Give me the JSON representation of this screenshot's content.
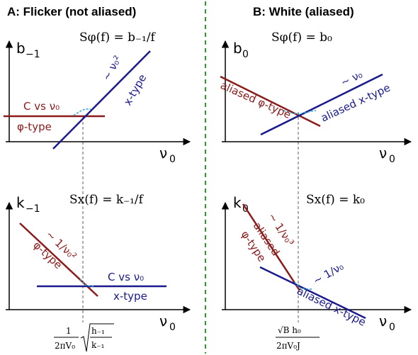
{
  "panels": {
    "left_title": "A:  Flicker (not aliased)",
    "right_title": "B:  White (aliased)"
  },
  "plots": {
    "tl": {
      "formula": "Sφ(f) = b₋₁/f",
      "ylabel": "b",
      "ylabel_sub": "−1",
      "xlabel": "ν",
      "xlabel_sub": "0",
      "red_line_label": "C vs ν₀",
      "red_type_label": "φ-type",
      "blue_line_label": "∼ ν₀²",
      "blue_type_label": "x-type"
    },
    "tr": {
      "formula": "Sφ(f) = b₀",
      "ylabel": "b",
      "ylabel_sub": "0",
      "xlabel": "ν",
      "xlabel_sub": "0",
      "red_line_label": "aliased φ-type",
      "blue_line_label": "∼ ν₀",
      "blue_type_label": "aliased x-type"
    },
    "bl": {
      "formula": "Sx(f) = k₋₁/f",
      "ylabel": "k",
      "ylabel_sub": "−1",
      "xlabel": "ν",
      "xlabel_sub": "0",
      "red_line_label": "∼ 1/ν₀²",
      "red_type_label": "φ-type",
      "blue_line_label": "C vs ν₀",
      "blue_type_label": "x-type"
    },
    "br": {
      "formula": "Sx(f) = k₀",
      "ylabel": "k",
      "ylabel_sub": "0",
      "xlabel": "ν",
      "xlabel_sub": "0",
      "red_line_label": "∼ 1/ν₀³",
      "red_type_label_1": "aliased",
      "red_type_label_2": "φ-type",
      "blue_line_label": "∼ 1/ν₀",
      "blue_type_label": "aliased x-type"
    }
  },
  "ticks": {
    "left_frac_num": "1",
    "left_frac_den": "2πV₀",
    "left_sqrt_num": "h₋₁",
    "left_sqrt_den": "k₋₁",
    "right_frac_num": "√B h₀",
    "right_frac_den": "2πV₀J"
  },
  "colors": {
    "red": "#8b1a1a",
    "blue": "#1a1a8c",
    "corner": "#29a3d6",
    "divider": "#2aa02a"
  }
}
